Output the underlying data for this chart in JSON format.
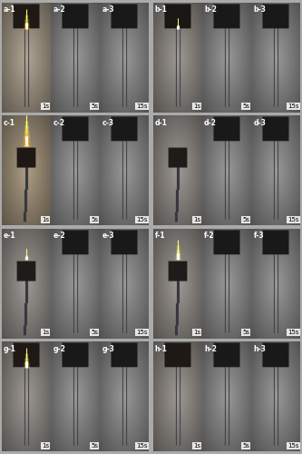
{
  "figsize": [
    3.33,
    5.0
  ],
  "dpi": 100,
  "groups": [
    "a",
    "b",
    "c",
    "d",
    "e",
    "f",
    "g",
    "h"
  ],
  "time_labels": [
    "1s",
    "5s",
    "15s"
  ],
  "panels": {
    "a1": {
      "bg": [
        0.7,
        0.65,
        0.58
      ],
      "flame": true,
      "flame_size": "small",
      "flame_col": [
        1.0,
        0.55,
        0.1
      ],
      "sample_top": true,
      "sample_color": [
        0.12,
        0.1,
        0.08
      ],
      "sample_burnt": 0.0
    },
    "a2": {
      "bg": [
        0.78,
        0.55,
        0.25
      ],
      "flame": true,
      "flame_size": "large",
      "flame_col": [
        1.0,
        0.45,
        0.05
      ],
      "sample_top": true,
      "sample_color": [
        0.1,
        0.08,
        0.05
      ],
      "sample_burnt": 0.4
    },
    "a3": {
      "bg": [
        0.72,
        0.42,
        0.18
      ],
      "flame": true,
      "flame_size": "xlarge",
      "flame_col": [
        0.95,
        0.38,
        0.04
      ],
      "sample_top": true,
      "sample_color": [
        0.08,
        0.06,
        0.04
      ],
      "sample_burnt": 0.8
    },
    "b1": {
      "bg": [
        0.62,
        0.6,
        0.58
      ],
      "flame": true,
      "flame_size": "tiny",
      "flame_col": [
        1.0,
        0.85,
        0.5
      ],
      "sample_top": true,
      "sample_color": [
        0.1,
        0.09,
        0.08
      ],
      "sample_burnt": 0.0
    },
    "b2": {
      "bg": [
        0.68,
        0.55,
        0.3
      ],
      "flame": true,
      "flame_size": "large",
      "flame_col": [
        1.0,
        0.55,
        0.1
      ],
      "sample_top": true,
      "sample_color": [
        0.1,
        0.08,
        0.06
      ],
      "sample_burnt": 0.3
    },
    "b3": {
      "bg": [
        0.15,
        0.14,
        0.13
      ],
      "flame": false,
      "flame_size": "none",
      "flame_col": [
        0,
        0,
        0
      ],
      "sample_top": true,
      "sample_color": [
        0.05,
        0.05,
        0.04
      ],
      "sample_burnt": 1.0
    },
    "c1": {
      "bg": [
        0.68,
        0.62,
        0.52
      ],
      "flame": true,
      "flame_size": "medium",
      "flame_col": [
        1.0,
        0.55,
        0.1
      ],
      "sample_top": false,
      "sample_color": [
        0.12,
        0.1,
        0.08
      ],
      "sample_burnt": 0.1
    },
    "c2": {
      "bg": [
        0.72,
        0.52,
        0.25
      ],
      "flame": true,
      "flame_size": "large",
      "flame_col": [
        1.0,
        0.48,
        0.06
      ],
      "sample_top": false,
      "sample_color": [
        0.1,
        0.08,
        0.06
      ],
      "sample_burnt": 0.4
    },
    "c3": {
      "bg": [
        0.7,
        0.45,
        0.2
      ],
      "flame": true,
      "flame_size": "xlarge",
      "flame_col": [
        0.95,
        0.4,
        0.05
      ],
      "sample_top": false,
      "sample_color": [
        0.08,
        0.06,
        0.04
      ],
      "sample_burnt": 0.7
    },
    "d1": {
      "bg": [
        0.62,
        0.6,
        0.58
      ],
      "flame": false,
      "flame_size": "none",
      "flame_col": [
        1.0,
        0.7,
        0.3
      ],
      "sample_top": false,
      "sample_color": [
        0.12,
        0.11,
        0.1
      ],
      "sample_burnt": 0.0
    },
    "d2": {
      "bg": [
        0.65,
        0.52,
        0.35
      ],
      "flame": true,
      "flame_size": "small",
      "flame_col": [
        1.0,
        0.65,
        0.2
      ],
      "sample_top": false,
      "sample_color": [
        0.1,
        0.09,
        0.07
      ],
      "sample_burnt": 0.1
    },
    "d3": {
      "bg": [
        0.63,
        0.58,
        0.5
      ],
      "flame": true,
      "flame_size": "small",
      "flame_col": [
        0.95,
        0.6,
        0.25
      ],
      "sample_top": false,
      "sample_color": [
        0.1,
        0.09,
        0.07
      ],
      "sample_burnt": 0.2
    },
    "e1": {
      "bg": [
        0.62,
        0.6,
        0.58
      ],
      "flame": true,
      "flame_size": "tiny",
      "flame_col": [
        1.0,
        0.8,
        0.4
      ],
      "sample_top": false,
      "sample_color": [
        0.12,
        0.11,
        0.1
      ],
      "sample_burnt": 0.0
    },
    "e2": {
      "bg": [
        0.64,
        0.52,
        0.35
      ],
      "flame": true,
      "flame_size": "medium",
      "flame_col": [
        1.0,
        0.6,
        0.18
      ],
      "sample_top": false,
      "sample_color": [
        0.1,
        0.09,
        0.07
      ],
      "sample_burnt": 0.1
    },
    "e3": {
      "bg": [
        0.64,
        0.5,
        0.32
      ],
      "flame": true,
      "flame_size": "medium",
      "flame_col": [
        1.0,
        0.58,
        0.15
      ],
      "sample_top": false,
      "sample_color": [
        0.1,
        0.09,
        0.07
      ],
      "sample_burnt": 0.15
    },
    "f1": {
      "bg": [
        0.62,
        0.6,
        0.58
      ],
      "flame": true,
      "flame_size": "small",
      "flame_col": [
        1.0,
        0.82,
        0.45
      ],
      "sample_top": false,
      "sample_color": [
        0.12,
        0.11,
        0.1
      ],
      "sample_burnt": 0.0
    },
    "f2": {
      "bg": [
        0.68,
        0.52,
        0.28
      ],
      "flame": true,
      "flame_size": "large",
      "flame_col": [
        1.0,
        0.52,
        0.08
      ],
      "sample_top": false,
      "sample_color": [
        0.1,
        0.09,
        0.07
      ],
      "sample_burnt": 0.2
    },
    "f3": {
      "bg": [
        0.68,
        0.5,
        0.25
      ],
      "flame": true,
      "flame_size": "large",
      "flame_col": [
        0.95,
        0.48,
        0.07
      ],
      "sample_top": false,
      "sample_color": [
        0.1,
        0.09,
        0.07
      ],
      "sample_burnt": 0.3
    },
    "g1": {
      "bg": [
        0.62,
        0.6,
        0.58
      ],
      "flame": true,
      "flame_size": "small",
      "flame_col": [
        1.0,
        0.82,
        0.4
      ],
      "sample_top": true,
      "sample_color": [
        0.12,
        0.1,
        0.08
      ],
      "sample_burnt": 0.0
    },
    "g2": {
      "bg": [
        0.72,
        0.5,
        0.22
      ],
      "flame": true,
      "flame_size": "large",
      "flame_col": [
        1.0,
        0.52,
        0.08
      ],
      "sample_top": true,
      "sample_color": [
        0.1,
        0.08,
        0.06
      ],
      "sample_burnt": 0.3
    },
    "g3": {
      "bg": [
        0.78,
        0.42,
        0.15
      ],
      "flame": true,
      "flame_size": "xlarge",
      "flame_col": [
        0.98,
        0.38,
        0.04
      ],
      "sample_top": true,
      "sample_color": [
        0.08,
        0.06,
        0.04
      ],
      "sample_burnt": 0.7
    },
    "h1": {
      "bg": [
        0.62,
        0.6,
        0.58
      ],
      "flame": false,
      "flame_size": "none",
      "flame_col": [
        1.0,
        0.7,
        0.3
      ],
      "sample_top": true,
      "sample_color": [
        0.12,
        0.1,
        0.08
      ],
      "sample_burnt": 0.0
    },
    "h2": {
      "bg": [
        0.65,
        0.53,
        0.35
      ],
      "flame": true,
      "flame_size": "medium",
      "flame_col": [
        1.0,
        0.6,
        0.2
      ],
      "sample_top": true,
      "sample_color": [
        0.1,
        0.08,
        0.06
      ],
      "sample_burnt": 0.2
    },
    "h3": {
      "bg": [
        0.12,
        0.11,
        0.1
      ],
      "flame": false,
      "flame_size": "none",
      "flame_col": [
        0,
        0,
        0
      ],
      "sample_top": true,
      "sample_color": [
        0.08,
        0.06,
        0.04
      ],
      "sample_burnt": 1.0
    }
  },
  "label_fontsize": 5.5,
  "time_fontsize": 5.0
}
